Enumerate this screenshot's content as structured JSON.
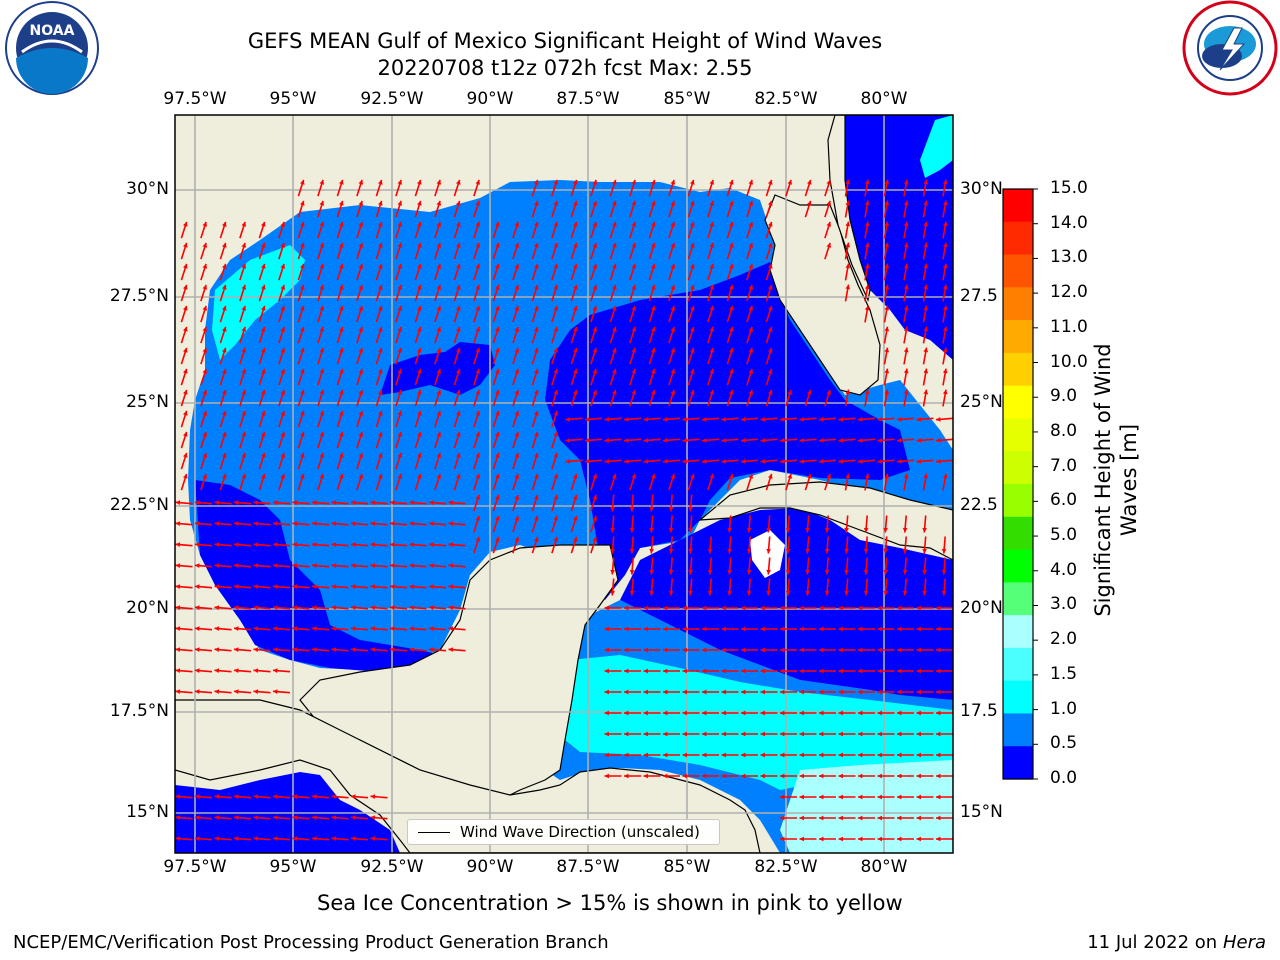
{
  "header": {
    "title_line1": "GEFS MEAN Gulf of Mexico Significant Height of Wind Waves",
    "title_line2": "20220708 t12z 072h fcst   Max: 2.55"
  },
  "logos": {
    "left": {
      "icon": "noaa-logo-icon",
      "text": "NOAA"
    },
    "right": {
      "icon": "nws-logo-icon"
    }
  },
  "map": {
    "lon_ticks": [
      "97.5°W",
      "95°W",
      "92.5°W",
      "90°W",
      "87.5°W",
      "85°W",
      "82.5°W",
      "80°W"
    ],
    "lat_ticks": [
      "30°N",
      "27.5°N",
      "25°N",
      "22.5°N",
      "20°N",
      "17.5°N",
      "15°N"
    ],
    "lat_ticks_right": [
      "30°N",
      "27.5",
      "25°N",
      "22.5",
      "20°N",
      "17.5",
      "15°N"
    ],
    "colors": {
      "land": "#efeddb",
      "coast": "#000000",
      "grid": "#b0b0b0",
      "arrow": "#ff0000",
      "wave_0_0_5": "#0000ff",
      "wave_0_5_1": "#0080ff",
      "wave_1_1_5": "#00ffff",
      "wave_1_5_2": "#4cffff"
    },
    "legend": {
      "label": "Wind Wave Direction (unscaled)"
    }
  },
  "colorbar": {
    "label": "Significant Height of Wind Waves [m]",
    "label_line1": "Significant Height of Wind",
    "label_line2": "Waves [m]",
    "ticks": [
      "15.0",
      "14.0",
      "13.0",
      "12.0",
      "11.0",
      "10.0",
      "9.0",
      "8.0",
      "7.0",
      "6.0",
      "5.0",
      "4.0",
      "3.0",
      "2.0",
      "1.5",
      "1.0",
      "0.5",
      "0.0"
    ],
    "colors": [
      "#ff0000",
      "#ff2a00",
      "#ff5500",
      "#ff8000",
      "#ffaa00",
      "#ffd000",
      "#ffff00",
      "#e6ff00",
      "#ccff00",
      "#99ff00",
      "#33dd00",
      "#00ff00",
      "#55ff77",
      "#aaffff",
      "#4cffff",
      "#00ffff",
      "#0080ff",
      "#0000ff"
    ]
  },
  "caption": "Sea Ice Concentration > 15% is shown in pink to yellow",
  "footer": {
    "left": "NCEP/EMC/Verification Post Processing Product Generation Branch",
    "right_date": "11 Jul 2022 on ",
    "right_host": "Hera"
  }
}
